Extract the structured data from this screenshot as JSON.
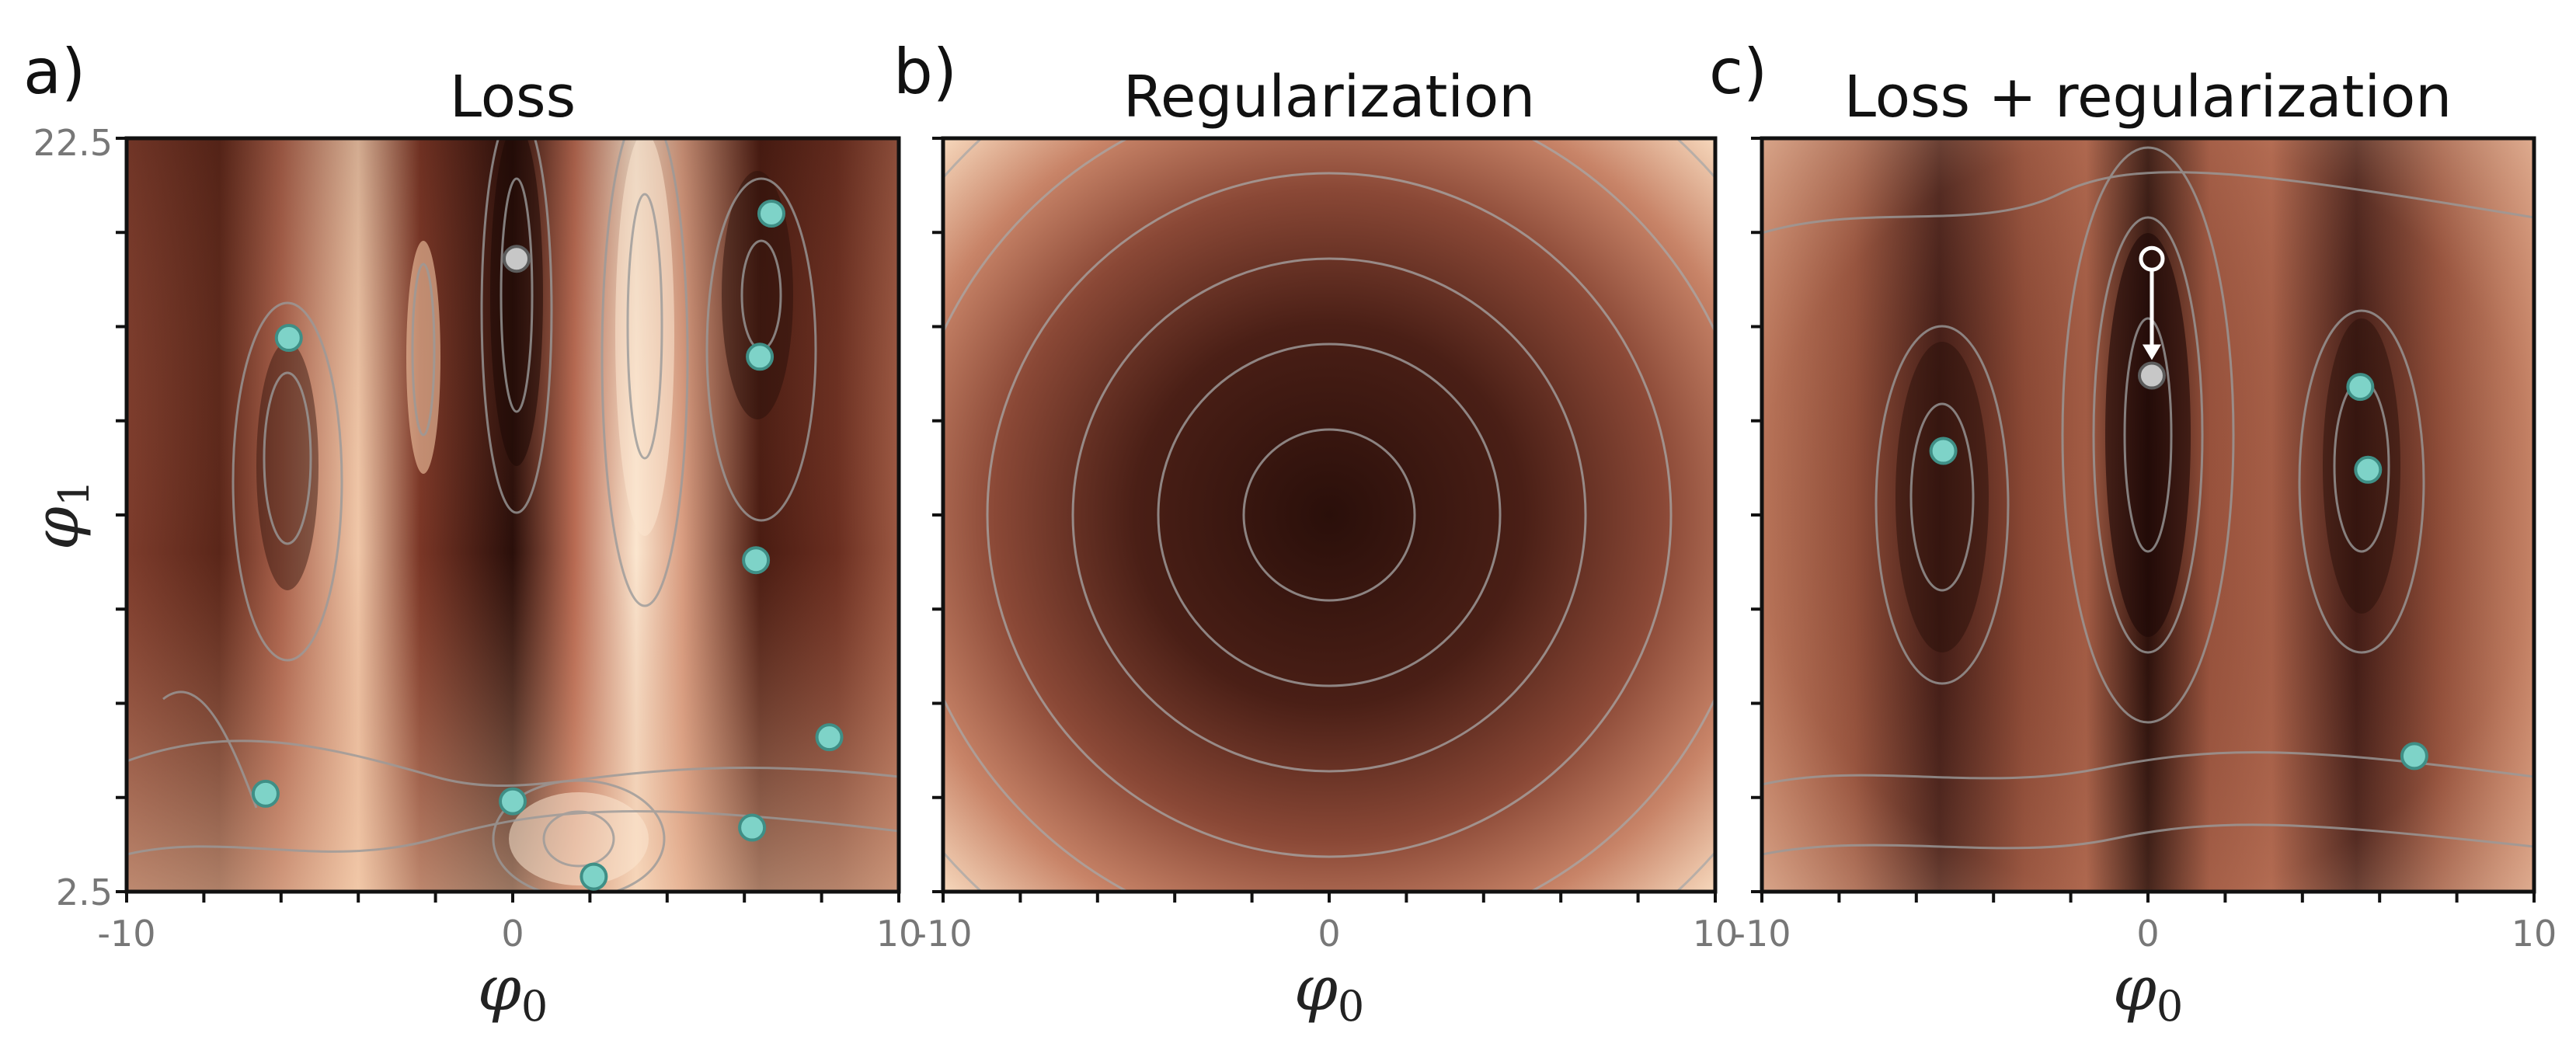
{
  "chart_data": [
    {
      "type": "heatmap",
      "panel_letter": "a)",
      "title": "Loss",
      "xlabel_base": "φ",
      "xlabel_sub": "0",
      "ylabel_base": "φ",
      "ylabel_sub": "1",
      "xlim": [
        -10,
        10
      ],
      "ylim": [
        2.5,
        22.5
      ],
      "x_tick_labels": [
        "-10",
        "0",
        "10"
      ],
      "y_tick_labels": [
        "2.5",
        "22.5"
      ],
      "points": [
        {
          "x": 6.7,
          "y": 20.5,
          "kind": "local-min"
        },
        {
          "x": 0.1,
          "y": 19.3,
          "kind": "global-min"
        },
        {
          "x": -5.8,
          "y": 17.2,
          "kind": "local-min"
        },
        {
          "x": 6.4,
          "y": 16.7,
          "kind": "local-min"
        },
        {
          "x": 6.3,
          "y": 11.3,
          "kind": "local-min"
        },
        {
          "x": 8.2,
          "y": 6.6,
          "kind": "local-min"
        },
        {
          "x": -6.4,
          "y": 5.1,
          "kind": "local-min"
        },
        {
          "x": 0.0,
          "y": 4.9,
          "kind": "local-min"
        },
        {
          "x": 6.2,
          "y": 4.2,
          "kind": "local-min"
        },
        {
          "x": 2.1,
          "y": 2.9,
          "kind": "local-min"
        }
      ]
    },
    {
      "type": "heatmap",
      "panel_letter": "b)",
      "title": "Regularization",
      "xlabel_base": "φ",
      "xlabel_sub": "0",
      "xlim": [
        -10,
        10
      ],
      "ylim": [
        2.5,
        22.5
      ],
      "x_tick_labels": [
        "-10",
        "0",
        "10"
      ],
      "center": {
        "x": 0,
        "y": 12.5
      },
      "points": []
    },
    {
      "type": "heatmap",
      "panel_letter": "c)",
      "title": "Loss + regularization",
      "xlabel_base": "φ",
      "xlabel_sub": "0",
      "xlim": [
        -10,
        10
      ],
      "ylim": [
        2.5,
        22.5
      ],
      "x_tick_labels": [
        "-10",
        "0",
        "10"
      ],
      "points": [
        {
          "x": 5.5,
          "y": 15.9,
          "kind": "local-min"
        },
        {
          "x": -5.3,
          "y": 14.2,
          "kind": "local-min"
        },
        {
          "x": 5.7,
          "y": 13.7,
          "kind": "local-min"
        },
        {
          "x": 6.9,
          "y": 6.1,
          "kind": "local-min"
        },
        {
          "x": 0.1,
          "y": 16.2,
          "kind": "global-min"
        }
      ],
      "shift_arrow": {
        "from": {
          "x": 0.1,
          "y": 19.3
        },
        "to": {
          "x": 0.1,
          "y": 16.2
        }
      }
    }
  ],
  "colors": {
    "min_marker": "#7ed3c8",
    "min_marker_edge": "#3f8f86",
    "global_marker": "#c7c7c7",
    "global_marker_edge": "#5c5c5c",
    "contour": "#9a9a9a",
    "frame": "#111111",
    "tick_label": "#777777",
    "dark": "#2a0f0a",
    "mid": "#a35a44",
    "light": "#fbe6cf"
  }
}
